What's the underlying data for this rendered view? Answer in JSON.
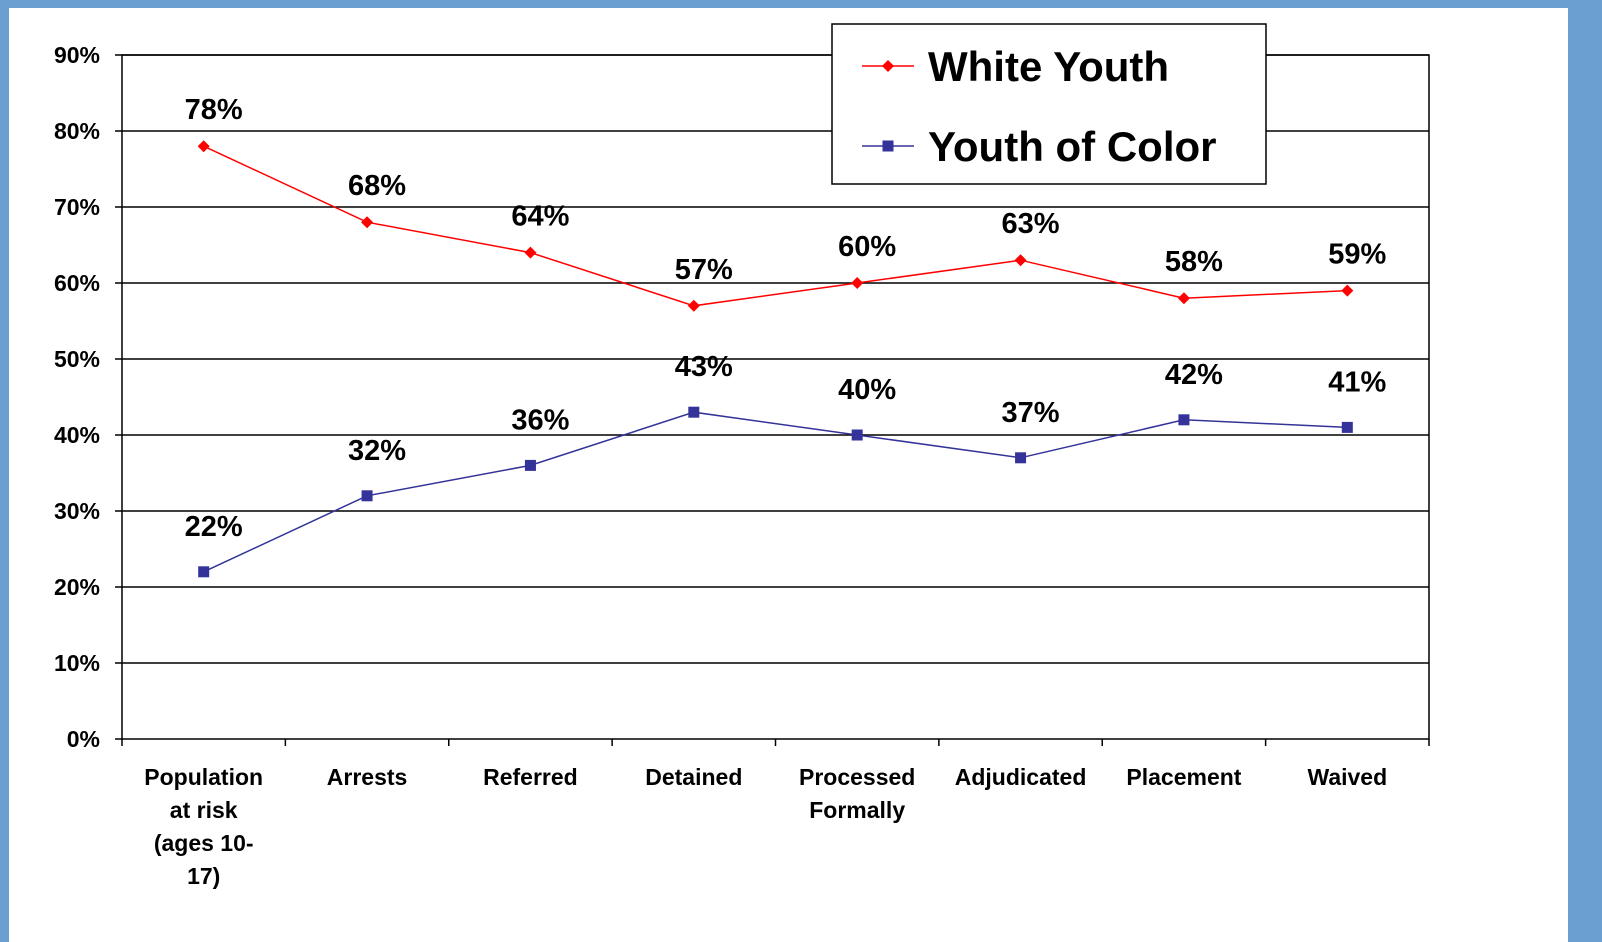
{
  "chart_data": {
    "type": "line",
    "categories": [
      [
        "Population",
        "at risk",
        "(ages 10-",
        "17)"
      ],
      [
        "Arrests"
      ],
      [
        "Referred"
      ],
      [
        "Detained"
      ],
      [
        "Processed",
        "Formally"
      ],
      [
        "Adjudicated"
      ],
      [
        "Placement"
      ],
      [
        "Waived"
      ]
    ],
    "series": [
      {
        "name": "White Youth",
        "values": [
          78,
          68,
          64,
          57,
          60,
          63,
          58,
          59
        ],
        "labels": [
          "78%",
          "68%",
          "64%",
          "57%",
          "60%",
          "63%",
          "58%",
          "59%"
        ],
        "color": "#ff0000",
        "marker": "diamond"
      },
      {
        "name": "Youth of Color",
        "values": [
          22,
          32,
          36,
          43,
          40,
          37,
          42,
          41
        ],
        "labels": [
          "22%",
          "32%",
          "36%",
          "43%",
          "40%",
          "37%",
          "42%",
          "41%"
        ],
        "color": "#333399",
        "marker": "square"
      }
    ],
    "y_ticks": [
      "0%",
      "10%",
      "20%",
      "30%",
      "40%",
      "50%",
      "60%",
      "70%",
      "80%",
      "90%"
    ],
    "ylim": [
      0,
      90
    ],
    "grid": true,
    "legend": "top-right"
  }
}
